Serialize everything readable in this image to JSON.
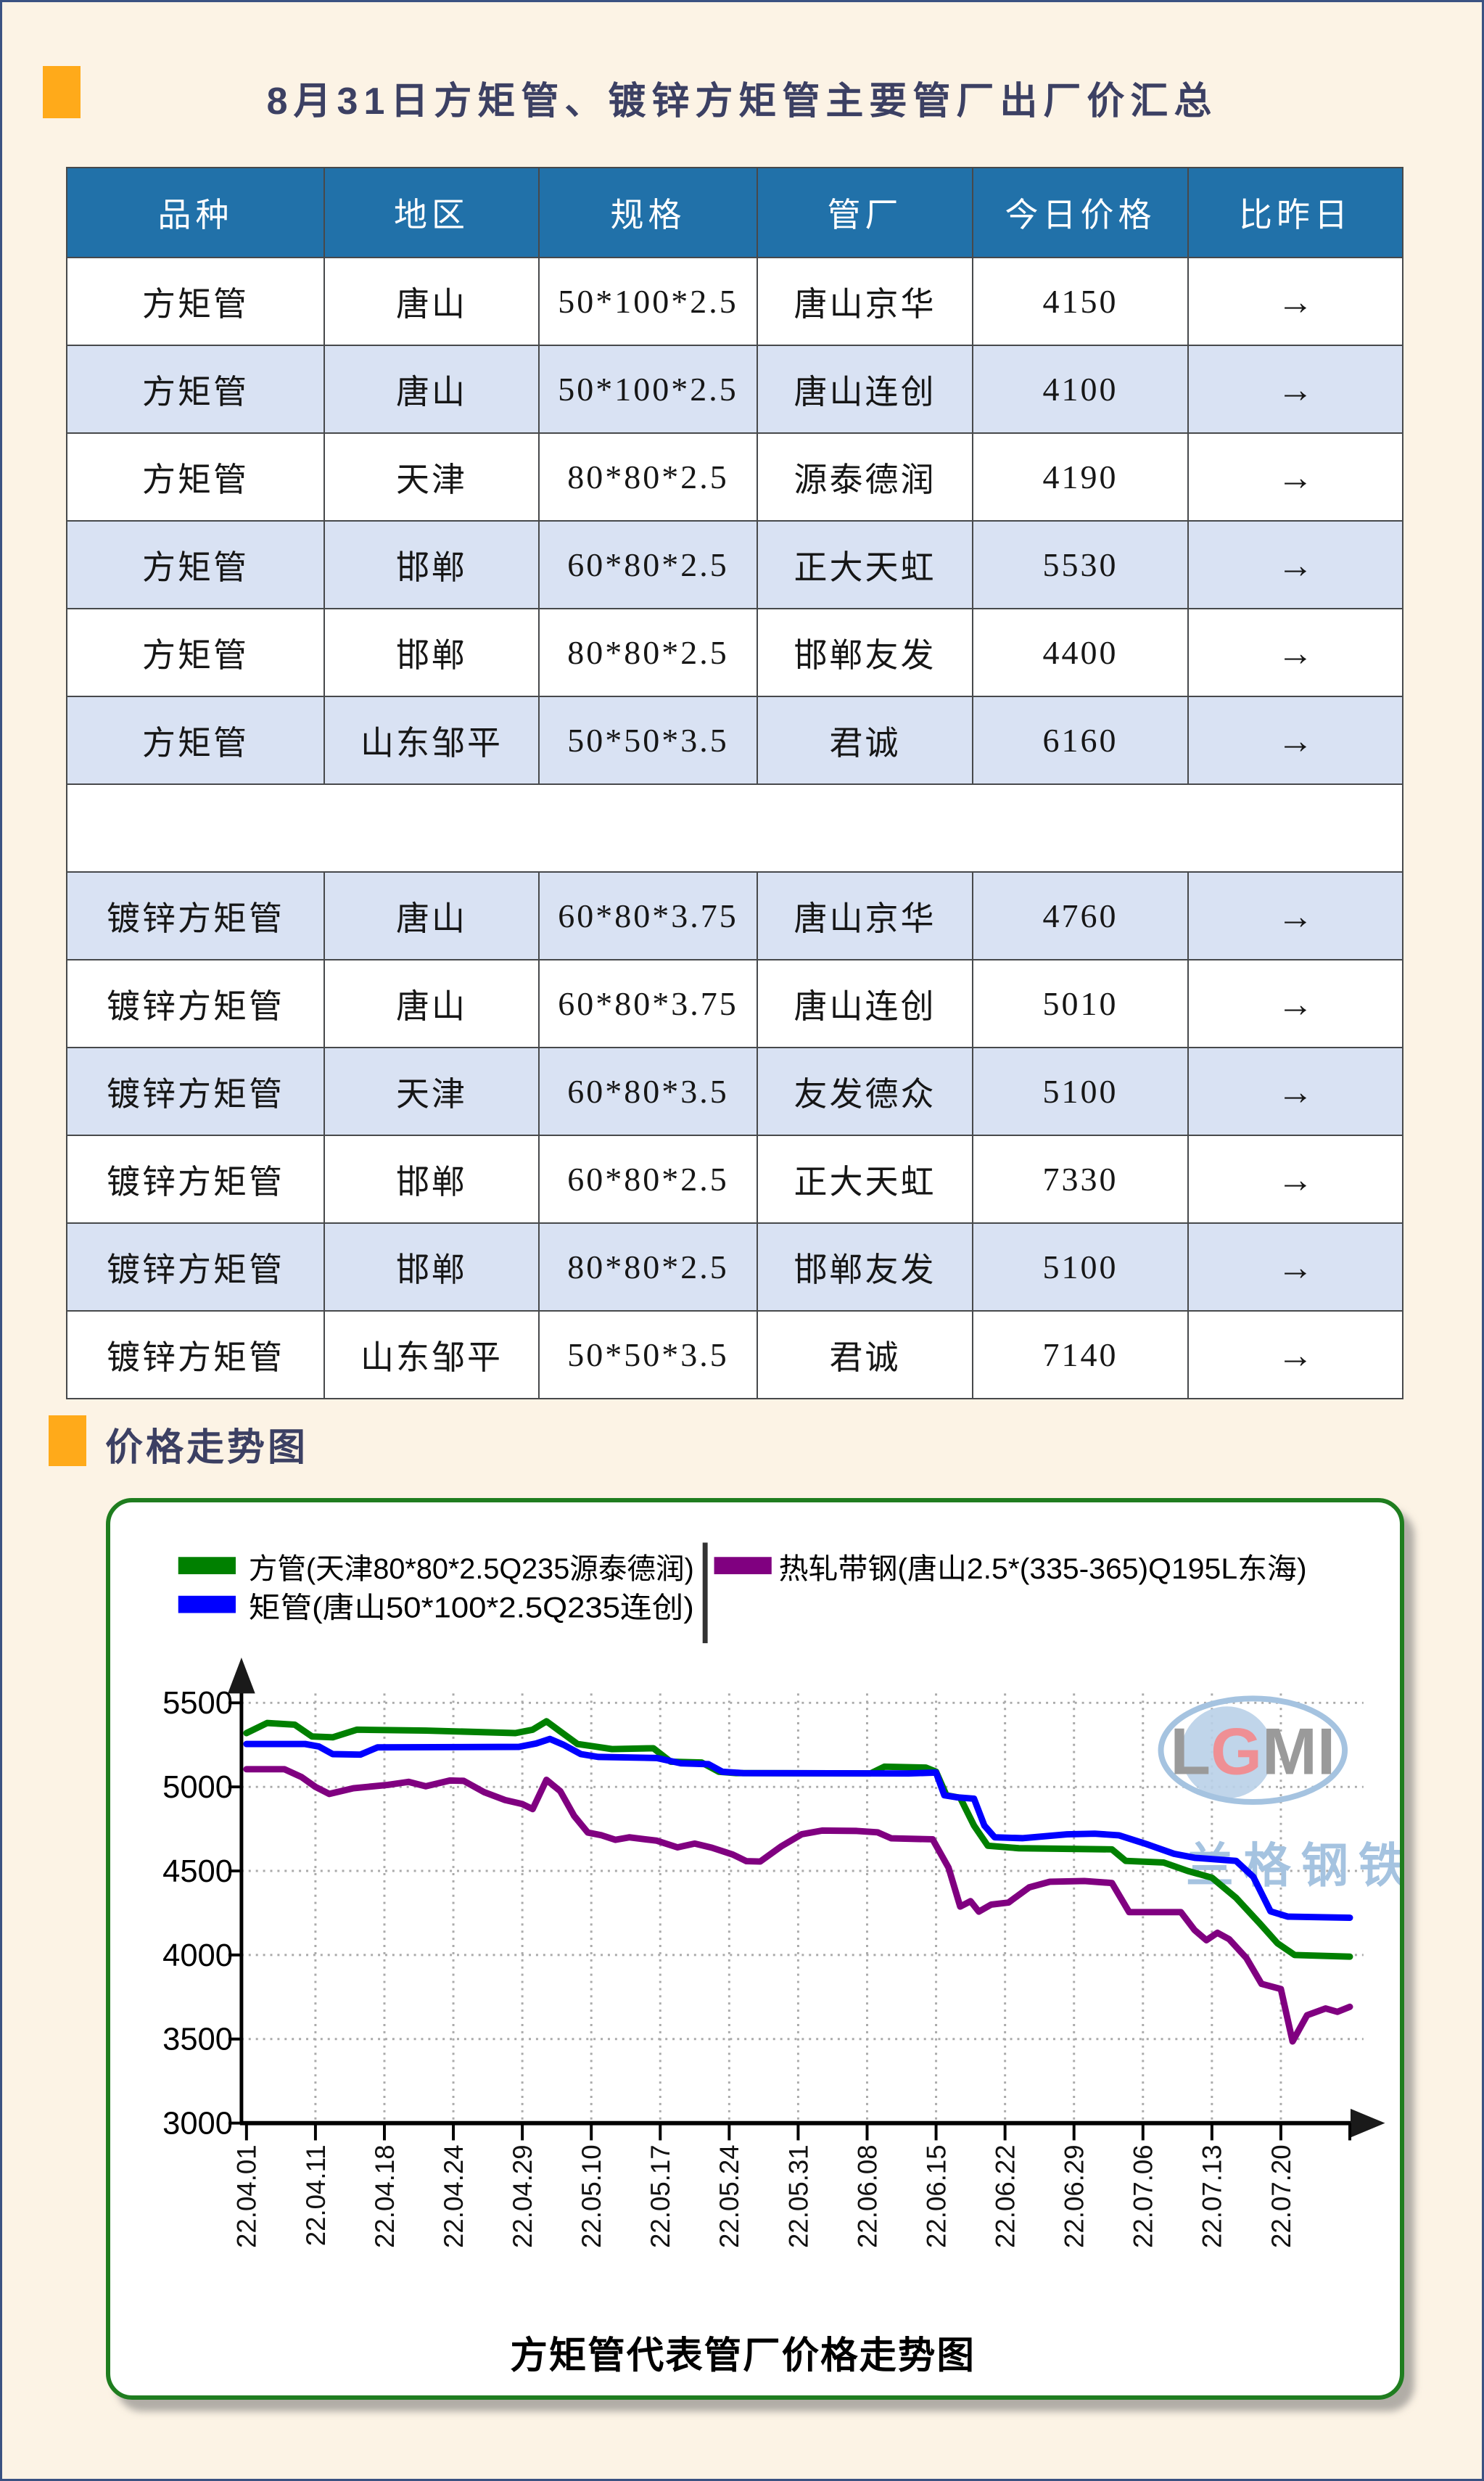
{
  "page": {
    "title": "8月31日方矩管、镀锌方矩管主要管厂出厂价汇总",
    "section_chart_title": "价格走势图"
  },
  "colors": {
    "background": "#fcf3e5",
    "page_border": "#3a5282",
    "accent_orange": "#ffaa1a",
    "title_text": "#3c4063",
    "table_header_bg": "#2171a9",
    "table_header_text": "#ffffff",
    "table_row_alt_bg": "#d9e2f3",
    "table_border": "#47494b",
    "chart_frame_green": "#1f7d1f",
    "watermark_blue": "#a5c3e0"
  },
  "table": {
    "headers": [
      "品种",
      "地区",
      "规格",
      "管厂",
      "今日价格",
      "比昨日"
    ],
    "rows": [
      [
        "方矩管",
        "唐山",
        "50*100*2.5",
        "唐山京华",
        "4150",
        "→"
      ],
      [
        "方矩管",
        "唐山",
        "50*100*2.5",
        "唐山连创",
        "4100",
        "→"
      ],
      [
        "方矩管",
        "天津",
        "80*80*2.5",
        "源泰德润",
        "4190",
        "→"
      ],
      [
        "方矩管",
        "邯郸",
        "60*80*2.5",
        "正大天虹",
        "5530",
        "→"
      ],
      [
        "方矩管",
        "邯郸",
        "80*80*2.5",
        "邯郸友发",
        "4400",
        "→"
      ],
      [
        "方矩管",
        "山东邹平",
        "50*50*3.5",
        "君诚",
        "6160",
        "→"
      ],
      null,
      [
        "镀锌方矩管",
        "唐山",
        "60*80*3.75",
        "唐山京华",
        "4760",
        "→"
      ],
      [
        "镀锌方矩管",
        "唐山",
        "60*80*3.75",
        "唐山连创",
        "5010",
        "→"
      ],
      [
        "镀锌方矩管",
        "天津",
        "60*80*3.5",
        "友发德众",
        "5100",
        "→"
      ],
      [
        "镀锌方矩管",
        "邯郸",
        "60*80*2.5",
        "正大天虹",
        "7330",
        "→"
      ],
      [
        "镀锌方矩管",
        "邯郸",
        "80*80*2.5",
        "邯郸友发",
        "5100",
        "→"
      ],
      [
        "镀锌方矩管",
        "山东邹平",
        "50*50*3.5",
        "君诚",
        "7140",
        "→"
      ]
    ]
  },
  "chart_data": {
    "type": "line",
    "caption": "方矩管代表管厂价格走势图",
    "grid": true,
    "legend_position": "top-left",
    "ylim": [
      3000,
      5600
    ],
    "y_ticks": [
      3000,
      3500,
      4000,
      4500,
      5000,
      5500
    ],
    "x_tick_labels": [
      "22.04.01",
      "22.04.11",
      "22.04.18",
      "22.04.24",
      "22.04.29",
      "22.05.10",
      "22.05.17",
      "22.05.24",
      "22.05.31",
      "22.06.08",
      "22.06.15",
      "22.06.22",
      "22.06.29",
      "22.07.06",
      "22.07.13",
      "22.07.20"
    ],
    "watermark": {
      "logo_text": "LGMI",
      "brand_text": "兰格钢铁"
    },
    "series": [
      {
        "name": "方管(天津80*80*2.5Q235源泰德润)",
        "color": "#008000",
        "points": [
          [
            0,
            5320
          ],
          [
            0.3,
            5380
          ],
          [
            0.7,
            5370
          ],
          [
            0.95,
            5300
          ],
          [
            1.25,
            5295
          ],
          [
            1.6,
            5340
          ],
          [
            2.6,
            5335
          ],
          [
            3.9,
            5320
          ],
          [
            4.15,
            5340
          ],
          [
            4.35,
            5390
          ],
          [
            4.55,
            5330
          ],
          [
            4.8,
            5255
          ],
          [
            5.05,
            5240
          ],
          [
            5.3,
            5225
          ],
          [
            5.9,
            5230
          ],
          [
            6.15,
            5150
          ],
          [
            6.6,
            5145
          ],
          [
            6.85,
            5090
          ],
          [
            7.1,
            5082
          ],
          [
            9.05,
            5080
          ],
          [
            9.25,
            5120
          ],
          [
            9.85,
            5115
          ],
          [
            10,
            5090
          ],
          [
            10.15,
            4950
          ],
          [
            10.35,
            4935
          ],
          [
            10.55,
            4770
          ],
          [
            10.75,
            4650
          ],
          [
            11.2,
            4635
          ],
          [
            12.55,
            4628
          ],
          [
            12.75,
            4560
          ],
          [
            13.3,
            4550
          ],
          [
            13.65,
            4500
          ],
          [
            14,
            4460
          ],
          [
            14.35,
            4340
          ],
          [
            14.7,
            4185
          ],
          [
            14.95,
            4070
          ],
          [
            15.2,
            4000
          ],
          [
            16,
            3990
          ]
        ]
      },
      {
        "name": "矩管(唐山50*100*2.5Q235连创)",
        "color": "#0000ff",
        "points": [
          [
            0,
            5255
          ],
          [
            0.85,
            5255
          ],
          [
            1.05,
            5240
          ],
          [
            1.25,
            5195
          ],
          [
            1.65,
            5192
          ],
          [
            1.9,
            5235
          ],
          [
            3.95,
            5238
          ],
          [
            4.2,
            5258
          ],
          [
            4.4,
            5285
          ],
          [
            4.6,
            5250
          ],
          [
            4.85,
            5195
          ],
          [
            5.1,
            5178
          ],
          [
            5.95,
            5172
          ],
          [
            6.3,
            5140
          ],
          [
            6.7,
            5135
          ],
          [
            6.9,
            5090
          ],
          [
            7.2,
            5082
          ],
          [
            9.6,
            5080
          ],
          [
            10,
            5085
          ],
          [
            10.12,
            4950
          ],
          [
            10.3,
            4938
          ],
          [
            10.55,
            4930
          ],
          [
            10.7,
            4770
          ],
          [
            10.85,
            4700
          ],
          [
            11.25,
            4695
          ],
          [
            11.9,
            4718
          ],
          [
            12.3,
            4722
          ],
          [
            12.65,
            4712
          ],
          [
            13.05,
            4660
          ],
          [
            13.45,
            4602
          ],
          [
            13.75,
            4578
          ],
          [
            14.35,
            4560
          ],
          [
            14.6,
            4465
          ],
          [
            14.85,
            4260
          ],
          [
            15.1,
            4228
          ],
          [
            16,
            4222
          ]
        ]
      },
      {
        "name": "热轧带钢(唐山2.5*(335-365)Q195L东海)",
        "color": "#800080",
        "points": [
          [
            0,
            5105
          ],
          [
            0.55,
            5105
          ],
          [
            0.8,
            5058
          ],
          [
            1,
            5000
          ],
          [
            1.2,
            4958
          ],
          [
            1.55,
            4992
          ],
          [
            2.05,
            5012
          ],
          [
            2.35,
            5030
          ],
          [
            2.6,
            5004
          ],
          [
            2.95,
            5038
          ],
          [
            3.15,
            5036
          ],
          [
            3.45,
            4968
          ],
          [
            3.75,
            4922
          ],
          [
            4,
            4898
          ],
          [
            4.15,
            4868
          ],
          [
            4.35,
            5042
          ],
          [
            4.55,
            4975
          ],
          [
            4.75,
            4828
          ],
          [
            4.95,
            4728
          ],
          [
            5.15,
            4712
          ],
          [
            5.35,
            4685
          ],
          [
            5.55,
            4700
          ],
          [
            5.95,
            4680
          ],
          [
            6.25,
            4640
          ],
          [
            6.5,
            4663
          ],
          [
            6.75,
            4638
          ],
          [
            7.05,
            4598
          ],
          [
            7.25,
            4558
          ],
          [
            7.45,
            4556
          ],
          [
            7.75,
            4645
          ],
          [
            8.05,
            4718
          ],
          [
            8.35,
            4740
          ],
          [
            8.85,
            4738
          ],
          [
            9.15,
            4730
          ],
          [
            9.35,
            4694
          ],
          [
            9.95,
            4688
          ],
          [
            10.18,
            4520
          ],
          [
            10.35,
            4288
          ],
          [
            10.5,
            4320
          ],
          [
            10.62,
            4258
          ],
          [
            10.8,
            4300
          ],
          [
            11.05,
            4312
          ],
          [
            11.35,
            4402
          ],
          [
            11.65,
            4436
          ],
          [
            12.15,
            4440
          ],
          [
            12.55,
            4428
          ],
          [
            12.8,
            4255
          ],
          [
            13.55,
            4255
          ],
          [
            13.75,
            4148
          ],
          [
            13.92,
            4088
          ],
          [
            14.08,
            4132
          ],
          [
            14.25,
            4094
          ],
          [
            14.5,
            3982
          ],
          [
            14.72,
            3828
          ],
          [
            15,
            3798
          ],
          [
            15.17,
            3486
          ],
          [
            15.38,
            3642
          ],
          [
            15.65,
            3682
          ],
          [
            15.82,
            3662
          ],
          [
            16,
            3692
          ]
        ]
      }
    ]
  }
}
